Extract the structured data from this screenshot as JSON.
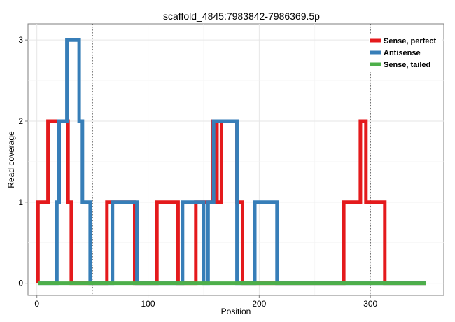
{
  "chart_data": {
    "type": "line",
    "title": "scaffold_4845:7983842-7986369.5p",
    "xlabel": "Position",
    "ylabel": "Read coverage",
    "xlim": [
      -8,
      366
    ],
    "ylim": [
      -0.15,
      3.2
    ],
    "xticks": [
      0,
      100,
      200,
      300
    ],
    "yticks": [
      0,
      1,
      2,
      3
    ],
    "grid": true,
    "vlines": [
      50,
      300
    ],
    "legend_position": "top-right",
    "series": [
      {
        "name": "Sense, perfect",
        "color": "#e41a1c",
        "x": [
          1,
          1,
          10,
          10,
          28,
          28,
          31,
          31,
          63,
          63,
          88,
          88,
          108,
          108,
          127,
          127,
          143,
          143,
          158,
          158,
          162,
          162,
          166,
          166,
          180,
          180,
          185,
          185,
          276,
          276,
          291,
          291,
          296,
          296,
          313,
          313,
          350
        ],
        "y": [
          0,
          1,
          1,
          2,
          2,
          1,
          1,
          0,
          0,
          1,
          1,
          0,
          0,
          1,
          1,
          0,
          0,
          1,
          1,
          2,
          2,
          1,
          1,
          2,
          2,
          1,
          1,
          0,
          0,
          1,
          1,
          2,
          2,
          1,
          1,
          0,
          0
        ]
      },
      {
        "name": "Antisense",
        "color": "#377eb8",
        "x": [
          1,
          18,
          18,
          20,
          20,
          27,
          27,
          38,
          38,
          41,
          41,
          48,
          48,
          68,
          68,
          90,
          90,
          131,
          131,
          150,
          150,
          154,
          154,
          159,
          159,
          162,
          162,
          175,
          175,
          180,
          180,
          196,
          196,
          216,
          216,
          350
        ],
        "y": [
          0,
          0,
          1,
          1,
          2,
          2,
          3,
          3,
          2,
          2,
          1,
          1,
          0,
          0,
          1,
          1,
          0,
          0,
          1,
          1,
          0,
          0,
          1,
          1,
          2,
          2,
          2,
          2,
          2,
          2,
          0,
          0,
          1,
          1,
          0,
          0
        ]
      },
      {
        "name": "Sense, tailed",
        "color": "#4daf4a",
        "x": [
          1,
          350
        ],
        "y": [
          0,
          0
        ]
      }
    ]
  }
}
